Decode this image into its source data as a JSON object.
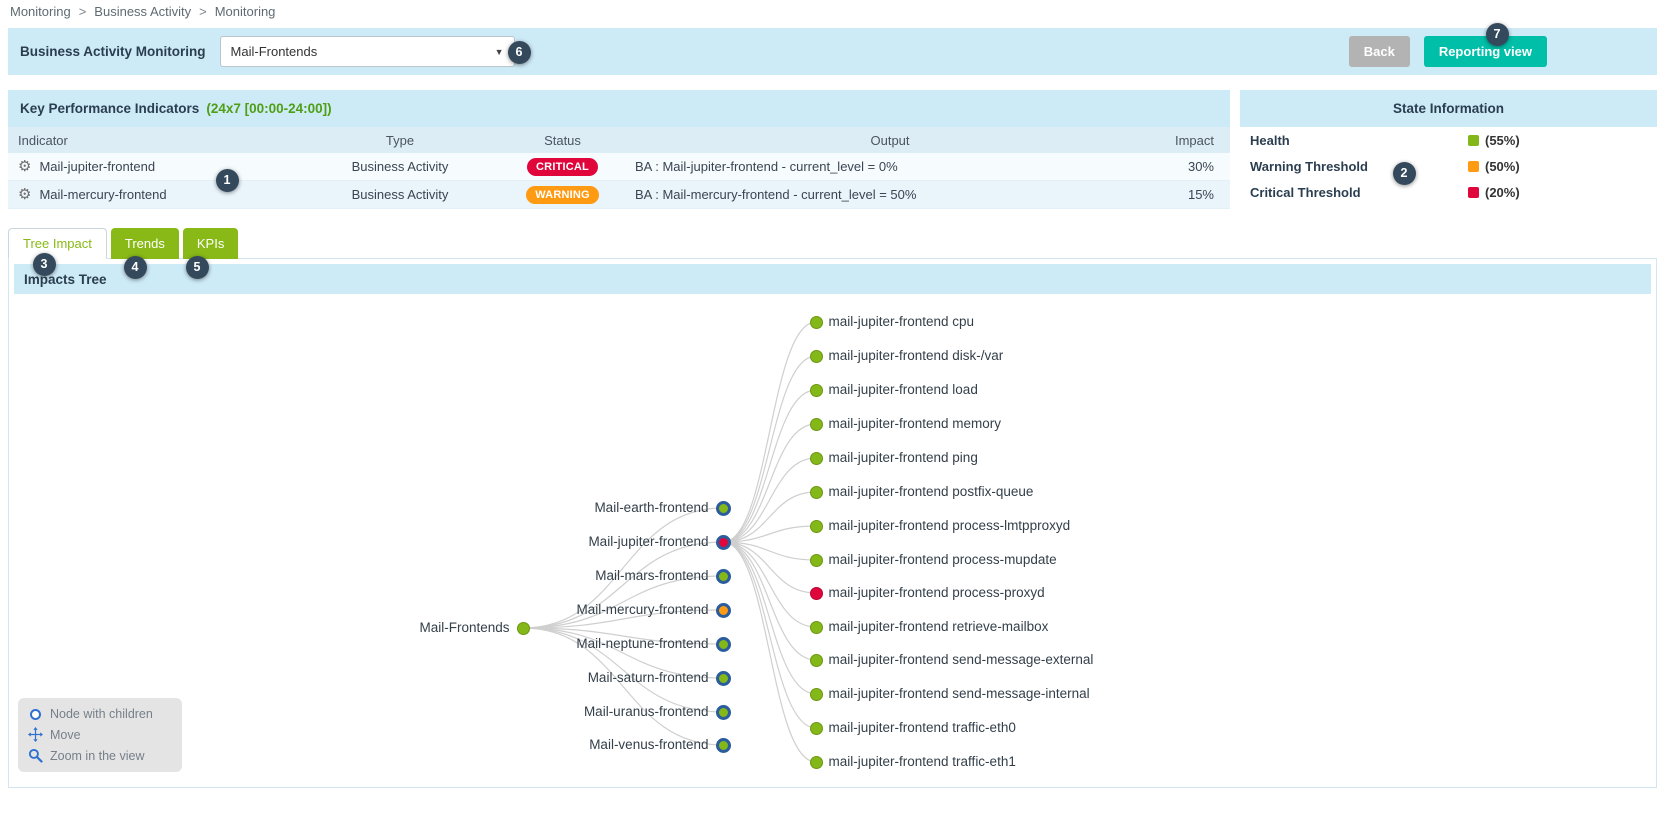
{
  "breadcrumb": {
    "separator": ">",
    "items": [
      "Monitoring",
      "Business Activity",
      "Monitoring"
    ]
  },
  "topbar": {
    "title": "Business Activity Monitoring",
    "select_value": "Mail-Frontends",
    "back_label": "Back",
    "reporting_label": "Reporting view"
  },
  "kpi": {
    "title": "Key Performance Indicators",
    "period": "(24x7 [00:00-24:00])",
    "columns": [
      "Indicator",
      "Type",
      "Status",
      "Output",
      "Impact"
    ],
    "rows": [
      {
        "indicator": "Mail-jupiter-frontend",
        "type": "Business Activity",
        "status": "CRITICAL",
        "level": "critical",
        "output": "BA : Mail-jupiter-frontend - current_level = 0%",
        "impact": "30%"
      },
      {
        "indicator": "Mail-mercury-frontend",
        "type": "Business Activity",
        "status": "WARNING",
        "level": "warning",
        "output": "BA : Mail-mercury-frontend - current_level = 50%",
        "impact": "15%"
      }
    ]
  },
  "state_info": {
    "title": "State Information",
    "rows": [
      {
        "label": "Health",
        "level": "ok",
        "value": "(55%)"
      },
      {
        "label": "Warning Threshold",
        "level": "warning",
        "value": "(50%)"
      },
      {
        "label": "Critical Threshold",
        "level": "critical",
        "value": "(20%)"
      }
    ]
  },
  "tabs": [
    {
      "label": "Tree Impact",
      "active": true
    },
    {
      "label": "Trends",
      "active": false
    },
    {
      "label": "KPIs",
      "active": false
    }
  ],
  "tree": {
    "panel_title": "Impacts Tree",
    "root": {
      "label": "Mail-Frontends",
      "level": "ok"
    },
    "children": [
      {
        "label": "Mail-earth-frontend",
        "level": "ok"
      },
      {
        "label": "Mail-jupiter-frontend",
        "level": "critical"
      },
      {
        "label": "Mail-mars-frontend",
        "level": "ok"
      },
      {
        "label": "Mail-mercury-frontend",
        "level": "warning"
      },
      {
        "label": "Mail-neptune-frontend",
        "level": "ok"
      },
      {
        "label": "Mail-saturn-frontend",
        "level": "ok"
      },
      {
        "label": "Mail-uranus-frontend",
        "level": "ok"
      },
      {
        "label": "Mail-venus-frontend",
        "level": "ok"
      }
    ],
    "expanded_child": "Mail-jupiter-frontend",
    "leaves": [
      {
        "label": "mail-jupiter-frontend cpu",
        "level": "ok"
      },
      {
        "label": "mail-jupiter-frontend disk-/var",
        "level": "ok"
      },
      {
        "label": "mail-jupiter-frontend load",
        "level": "ok"
      },
      {
        "label": "mail-jupiter-frontend memory",
        "level": "ok"
      },
      {
        "label": "mail-jupiter-frontend ping",
        "level": "ok"
      },
      {
        "label": "mail-jupiter-frontend postfix-queue",
        "level": "ok"
      },
      {
        "label": "mail-jupiter-frontend process-lmtpproxyd",
        "level": "ok"
      },
      {
        "label": "mail-jupiter-frontend process-mupdate",
        "level": "ok"
      },
      {
        "label": "mail-jupiter-frontend process-proxyd",
        "level": "critical"
      },
      {
        "label": "mail-jupiter-frontend retrieve-mailbox",
        "level": "ok"
      },
      {
        "label": "mail-jupiter-frontend send-message-external",
        "level": "ok"
      },
      {
        "label": "mail-jupiter-frontend send-message-internal",
        "level": "ok"
      },
      {
        "label": "mail-jupiter-frontend traffic-eth0",
        "level": "ok"
      },
      {
        "label": "mail-jupiter-frontend traffic-eth1",
        "level": "ok"
      }
    ],
    "legend": [
      {
        "icon": "node-circle-icon",
        "label": "Node with children"
      },
      {
        "icon": "move-icon",
        "label": "Move"
      },
      {
        "icon": "zoom-icon",
        "label": "Zoom in the view"
      }
    ]
  },
  "callouts": [
    "1",
    "2",
    "3",
    "4",
    "5",
    "6",
    "7"
  ],
  "colors": {
    "ok": "#84b818",
    "warning": "#ff9a13",
    "critical": "#e0063c",
    "accent_blue_bar": "#cdeaf7",
    "tab_green": "#88b917",
    "period_green": "#4f9e14",
    "node_ring": "#2b5d9e",
    "reporting_button": "#00bfa8",
    "back_button": "#b3b3b3",
    "callout": "#35495d"
  }
}
